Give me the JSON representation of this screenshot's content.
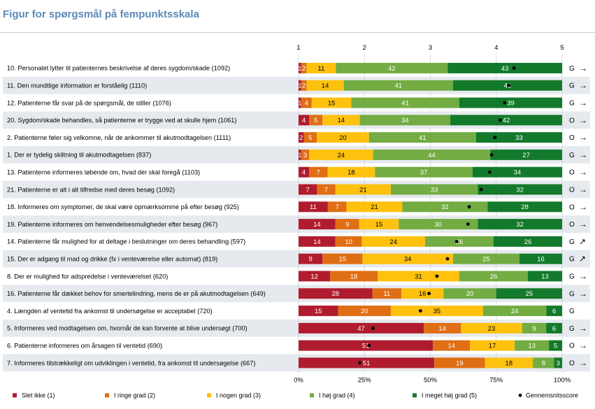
{
  "title": "Figur for spørgsmål på fempunktsskala",
  "colors": {
    "slet_ikke": "#b01c2e",
    "ringe": "#e06e14",
    "nogen": "#fdc10e",
    "hoej": "#72ac42",
    "meget_hoej": "#137a2b",
    "row_shade": "#e6eaef"
  },
  "chart_data": {
    "type": "bar",
    "stacked": "percent",
    "orientation": "horizontal",
    "top_axis": {
      "ticks": [
        "1",
        "2",
        "3",
        "4",
        "5"
      ],
      "range": [
        1,
        5
      ]
    },
    "bottom_axis": {
      "ticks": [
        "0%",
        "25%",
        "50%",
        "75%",
        "100%"
      ],
      "range": [
        0,
        100
      ]
    },
    "legend_placement": "bottom",
    "series": [
      {
        "name": "Slet ikke (1)",
        "color": "#b01c2e"
      },
      {
        "name": "I ringe grad (2)",
        "color": "#e06e14"
      },
      {
        "name": "I nogen grad (3)",
        "color": "#fdc10e"
      },
      {
        "name": "I høj grad (4)",
        "color": "#72ac42"
      },
      {
        "name": "I meget høj grad (5)",
        "color": "#137a2b"
      }
    ],
    "mean_marker_label": "Gennemsnitsscore",
    "rows": [
      {
        "label": "10. Personalet lytter til patienternes beskrivelse af deres sygdom/skade (1092)",
        "values": [
          1,
          2,
          11,
          42,
          43
        ],
        "mean": 4.27,
        "sig": "G",
        "trend": "→"
      },
      {
        "label": "11. Den mundtlige information er forståelig (1110)",
        "values": [
          1,
          2,
          14,
          41,
          41
        ],
        "mean": 4.19,
        "sig": "G",
        "trend": "→"
      },
      {
        "label": "12. Patienterne får svar på de spørgsmål, de stiller (1076)",
        "values": [
          1,
          4,
          15,
          41,
          39
        ],
        "mean": 4.13,
        "sig": "G",
        "trend": "→"
      },
      {
        "label": "20. Sygdom/skade behandles, så patienterne er trygge ved at skulle hjem (1061)",
        "values": [
          4,
          5,
          14,
          34,
          42
        ],
        "mean": 4.06,
        "sig": "O",
        "trend": "→"
      },
      {
        "label": "2. Patienterne føler sig velkomne, når de ankommer til akutmodtagelsen (1111)",
        "values": [
          2,
          5,
          20,
          41,
          33
        ],
        "mean": 3.98,
        "sig": "O",
        "trend": "→"
      },
      {
        "label": "1. Der er tydelig skiltning til akutmodtagelsen (837)",
        "values": [
          1,
          3,
          24,
          44,
          27
        ],
        "mean": 3.93,
        "sig": "G",
        "trend": "→"
      },
      {
        "label": "13. Patienterne informeres løbende om, hvad der skal foregå (1103)",
        "values": [
          4,
          7,
          18,
          37,
          34
        ],
        "mean": 3.9,
        "sig": "O",
        "trend": "→"
      },
      {
        "label": "21. Patienterne er alt i alt tilfredse med deres besøg (1092)",
        "values": [
          7,
          7,
          21,
          33,
          32
        ],
        "mean": 3.77,
        "sig": "O",
        "trend": "→"
      },
      {
        "label": "18. Informeres om symptomer, de skal være opmærksomme på efter besøg (925)",
        "values": [
          11,
          7,
          21,
          32,
          28
        ],
        "mean": 3.59,
        "sig": "O",
        "trend": "→"
      },
      {
        "label": "19. Patienterne informeres om henvendelsesmuligheder efter besøg (967)",
        "values": [
          14,
          9,
          15,
          30,
          32
        ],
        "mean": 3.57,
        "sig": "O",
        "trend": "→"
      },
      {
        "label": "14. Patienterne får mulighed for at deltage i beslutninger om deres behandling (597)",
        "values": [
          14,
          10,
          24,
          26,
          26
        ],
        "mean": 3.4,
        "sig": "G",
        "trend": "↗"
      },
      {
        "label": "15. Der er adgang til mad og drikke (fx i venteværelse eller automat) (819)",
        "values": [
          9,
          15,
          34,
          25,
          16
        ],
        "mean": 3.26,
        "sig": "G",
        "trend": "↗"
      },
      {
        "label": "8. Der er mulighed for adspredelse i venteværelset (620)",
        "values": [
          12,
          18,
          31,
          26,
          13
        ],
        "mean": 3.1,
        "sig": "G",
        "trend": "→"
      },
      {
        "label": "16. Patienterne får dækket behov for smertelindring, mens de er på akutmodtagelsen (649)",
        "values": [
          28,
          11,
          16,
          20,
          25
        ],
        "mean": 2.98,
        "sig": "G",
        "trend": "→"
      },
      {
        "label": "4. Længden af ventetid fra ankomst til undersøgelse er acceptabel (720)",
        "values": [
          15,
          20,
          35,
          24,
          6
        ],
        "mean": 2.85,
        "sig": "G",
        "trend": ""
      },
      {
        "label": "5. Informeres ved modtagelsen om, hvornår de kan forvente at blive undersøgt (700)",
        "values": [
          47,
          14,
          23,
          9,
          6
        ],
        "mean": 2.13,
        "sig": "G",
        "trend": "→"
      },
      {
        "label": "6. Patienterne informeres om årsagen til ventetid (690)",
        "values": [
          51,
          14,
          17,
          13,
          5
        ],
        "mean": 2.07,
        "sig": "O",
        "trend": "→"
      },
      {
        "label": "7.  Informeres tilstrækkeligt om udviklingen i ventetid, fra ankomst til undersøgelse (667)",
        "values": [
          51,
          19,
          18,
          8,
          3
        ],
        "mean": 1.93,
        "sig": "O",
        "trend": "→"
      }
    ]
  }
}
